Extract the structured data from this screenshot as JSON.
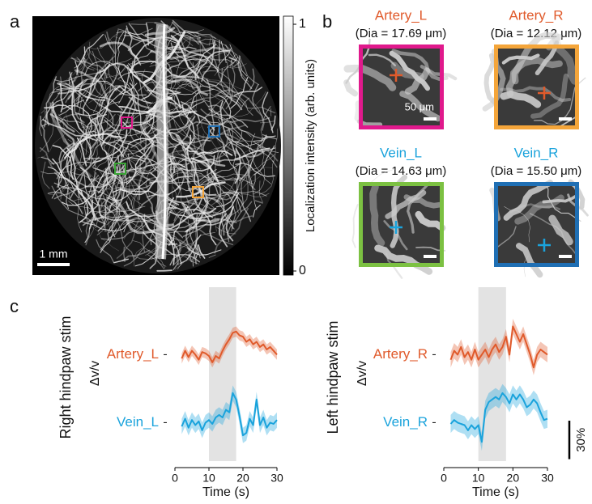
{
  "panels": {
    "a": "a",
    "b": "b",
    "c": "c"
  },
  "image": {
    "scalebar": "1 mm",
    "colorbar": {
      "label": "Localization intensity (arb. units)",
      "lim": [
        0,
        1
      ],
      "ticks": [
        0,
        1
      ]
    }
  },
  "insets": [
    {
      "name": "Artery_L",
      "dia": "(Dia = 17.69 μm)",
      "color": "#e05a2b",
      "border": "#e0198c",
      "scalebar": "50 μm"
    },
    {
      "name": "Artery_R",
      "dia": "(Dia = 12.12 μm)",
      "color": "#e05a2b",
      "border": "#f4a53a"
    },
    {
      "name": "Vein_L",
      "dia": "(Dia = 14.63 μm)",
      "color": "#1aa3dc",
      "border": "#7cc142"
    },
    {
      "name": "Vein_R",
      "dia": "(Dia = 15.50 μm)",
      "color": "#1aa3dc",
      "border": "#1f6fb4"
    }
  ],
  "chart_data": [
    {
      "type": "line",
      "row_label": "Right hindpaw stim",
      "ylabel": "Δv/v",
      "xlabel": "Time (s)",
      "xlim": [
        0,
        30
      ],
      "xticks": [
        0,
        10,
        20,
        30
      ],
      "ylim": [
        -25,
        28
      ],
      "shade": [
        10,
        18
      ],
      "x": [
        2,
        3,
        4,
        5,
        6,
        7,
        8,
        9,
        10,
        11,
        12,
        13,
        14,
        15,
        16,
        17,
        18,
        19,
        20,
        21,
        22,
        23,
        24,
        25,
        26,
        27,
        28,
        29,
        30
      ],
      "series": [
        {
          "name": "Artery_L",
          "color": "#e05a2b",
          "error": 4,
          "values": [
            -3,
            3,
            -2,
            3,
            0,
            -4,
            2,
            1,
            -1,
            -6,
            -1,
            -3,
            3,
            8,
            12,
            17,
            18,
            15,
            14,
            10,
            12,
            8,
            10,
            6,
            8,
            4,
            6,
            3,
            0
          ]
        },
        {
          "name": "Vein_L",
          "color": "#1aa3dc",
          "error": 6,
          "values": [
            -3,
            3,
            -4,
            2,
            -2,
            1,
            -6,
            0,
            2,
            -1,
            4,
            6,
            4,
            10,
            8,
            23,
            18,
            5,
            -10,
            -8,
            3,
            -2,
            18,
            -2,
            4,
            -4,
            0,
            -1,
            2
          ]
        }
      ]
    },
    {
      "type": "line",
      "row_label": "Left hindpaw stim",
      "ylabel": "Δv/v",
      "xlabel": "Time (s)",
      "xlim": [
        0,
        30
      ],
      "xticks": [
        0,
        10,
        20,
        30
      ],
      "ylim": [
        -25,
        28
      ],
      "shade": [
        10,
        18
      ],
      "scalebar": {
        "value": 30,
        "label": "30%"
      },
      "x": [
        2,
        3,
        4,
        5,
        6,
        7,
        8,
        9,
        10,
        11,
        12,
        13,
        14,
        15,
        16,
        17,
        18,
        19,
        20,
        21,
        22,
        23,
        24,
        25,
        26,
        27,
        28,
        29,
        30
      ],
      "series": [
        {
          "name": "Artery_R",
          "color": "#e05a2b",
          "error": 6,
          "values": [
            -4,
            3,
            0,
            6,
            -2,
            2,
            -4,
            4,
            -4,
            0,
            4,
            -2,
            4,
            8,
            2,
            6,
            14,
            0,
            22,
            16,
            10,
            16,
            8,
            0,
            -10,
            0,
            4,
            2,
            0
          ]
        },
        {
          "name": "Vein_R",
          "color": "#1aa3dc",
          "error": 7,
          "values": [
            -1,
            2,
            0,
            -1,
            -2,
            -6,
            -2,
            -5,
            -2,
            -15,
            10,
            16,
            18,
            20,
            18,
            23,
            20,
            15,
            22,
            18,
            22,
            18,
            12,
            14,
            18,
            15,
            8,
            2,
            3
          ]
        }
      ]
    }
  ]
}
